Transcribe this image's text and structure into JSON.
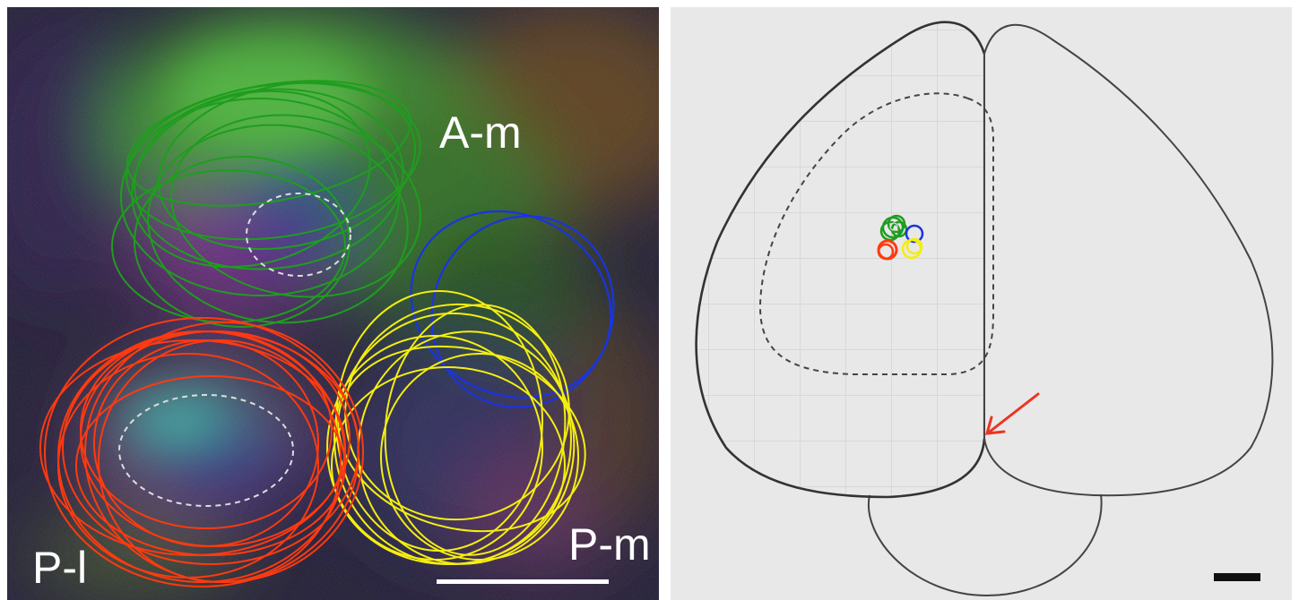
{
  "labels": {
    "a_m": "A-m",
    "p_l": "P-l",
    "p_m": "P-m"
  },
  "colors": {
    "green": "#1f9d1f",
    "red": "#ff3a10",
    "yellow": "#f4ee10",
    "blue": "#1a34e0",
    "dashed": "#dddddd",
    "arrow": "#ee3322",
    "outline": "#444444",
    "right_bg": "#e8e8e8"
  },
  "icons": {
    "arrow": "red-arrow-icon",
    "scale_bar": "scale-bar-icon"
  }
}
